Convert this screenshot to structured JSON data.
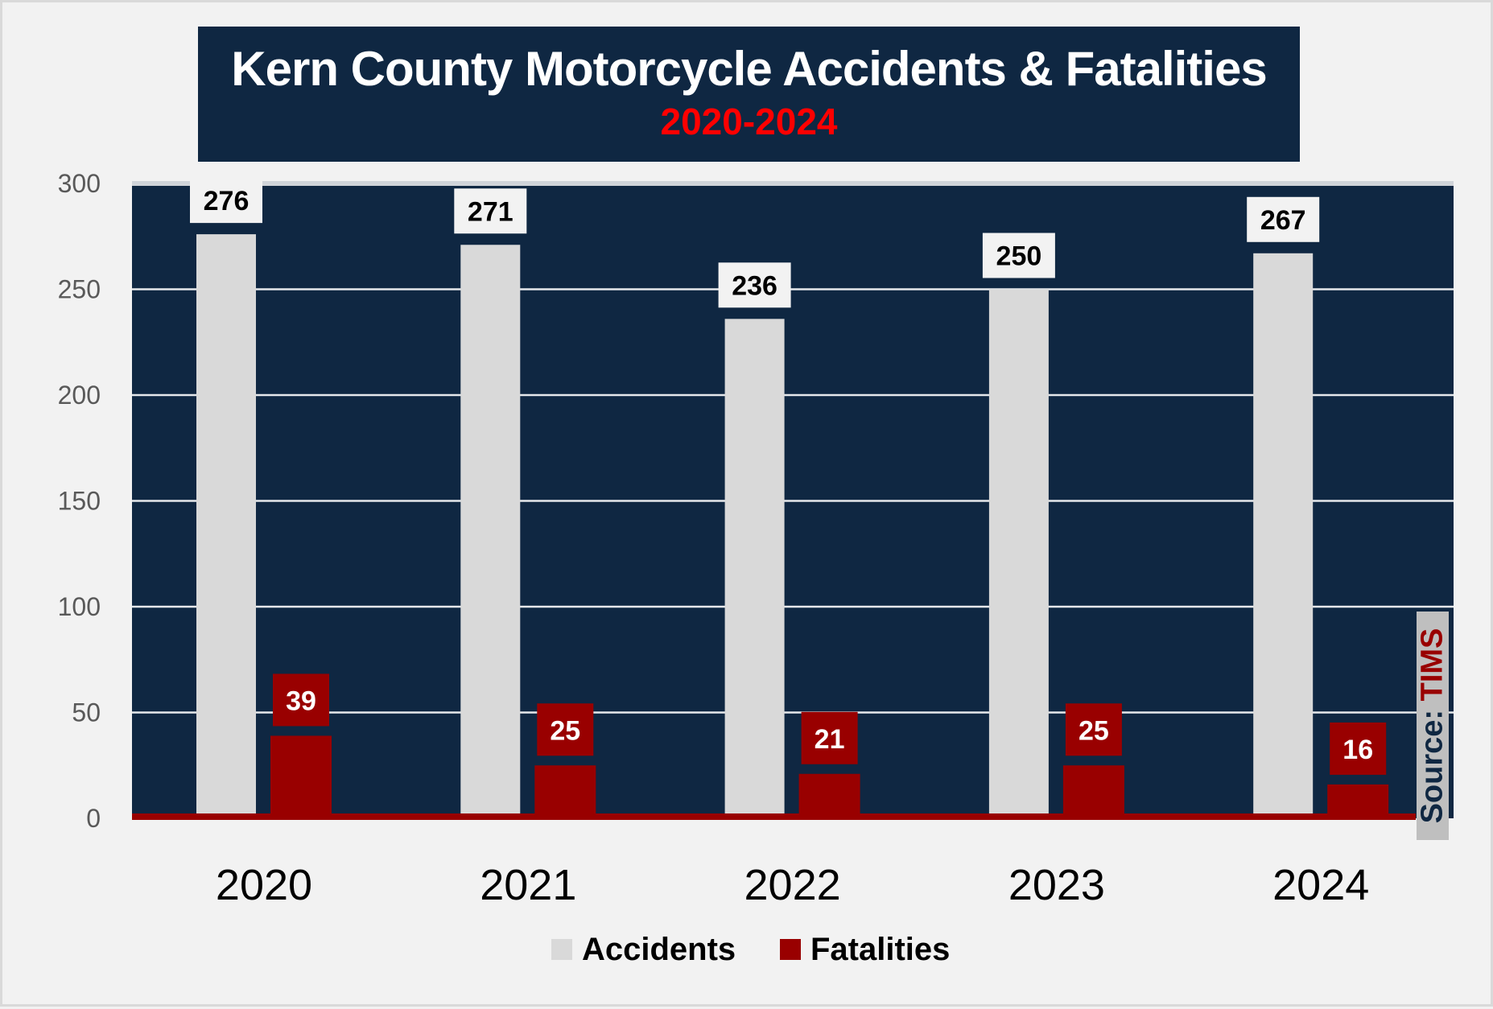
{
  "chart_data": {
    "type": "bar",
    "title": "Kern County Motorcycle Accidents & Fatalities",
    "subtitle": "2020-2024",
    "categories": [
      "2020",
      "2021",
      "2022",
      "2023",
      "2024"
    ],
    "series": [
      {
        "name": "Accidents",
        "values": [
          276,
          271,
          236,
          250,
          267
        ],
        "color": "#d9d9d9"
      },
      {
        "name": "Fatalities",
        "values": [
          39,
          25,
          21,
          25,
          16
        ],
        "color": "#990000"
      }
    ],
    "ylim": [
      0,
      300
    ],
    "yticks": [
      0,
      50,
      100,
      150,
      200,
      250,
      300
    ],
    "grid": true,
    "legend": "bottom",
    "plot_background": "#0f2742",
    "source_label": "Source:",
    "source_value": "TIMS"
  }
}
